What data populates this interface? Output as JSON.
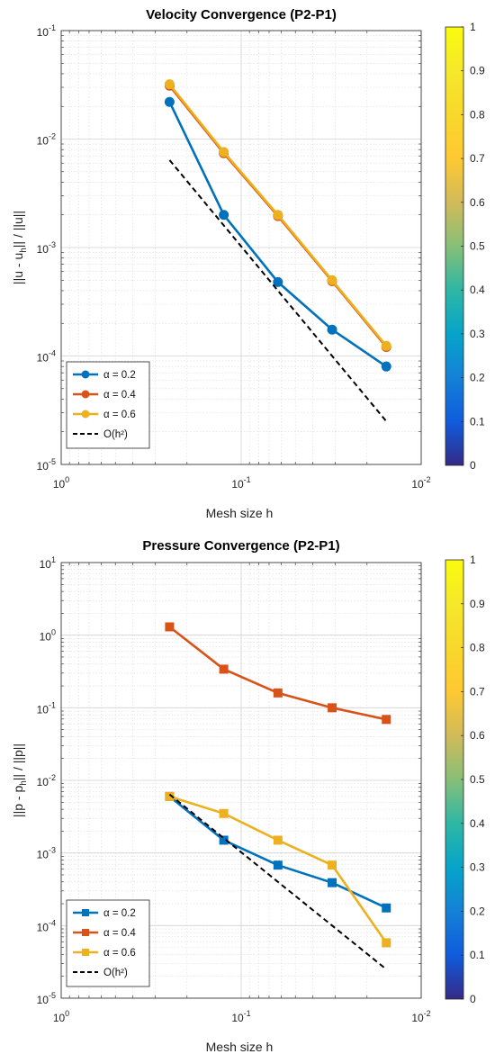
{
  "chart_data": [
    {
      "type": "line",
      "title": "Velocity Convergence (P2-P1)",
      "xlabel": "Mesh size h",
      "ylabel": "||u - u_h|| / ||u||",
      "xscale": "log",
      "yscale": "log",
      "xreverse": true,
      "xlim": [
        0.01,
        1
      ],
      "ylim": [
        1e-05,
        0.1
      ],
      "x_ticks": [
        {
          "v": 1,
          "base": "10",
          "exp": "0"
        },
        {
          "v": 0.1,
          "base": "10",
          "exp": "-1"
        },
        {
          "v": 0.01,
          "base": "10",
          "exp": "-2"
        }
      ],
      "y_ticks": [
        {
          "v": 1e-05,
          "base": "10",
          "exp": "-5"
        },
        {
          "v": 0.0001,
          "base": "10",
          "exp": "-4"
        },
        {
          "v": 0.001,
          "base": "10",
          "exp": "-3"
        },
        {
          "v": 0.01,
          "base": "10",
          "exp": "-2"
        },
        {
          "v": 0.1,
          "base": "10",
          "exp": "-1"
        }
      ],
      "marker": "circle",
      "grid": true,
      "legend_position": "bottom-left",
      "x": [
        0.25,
        0.125,
        0.0625,
        0.03125,
        0.015625
      ],
      "series": [
        {
          "name": "α = 0.2",
          "color": "#0072BD",
          "values": [
            0.022,
            0.002,
            0.00048,
            0.000175,
            8e-05
          ]
        },
        {
          "name": "α = 0.4",
          "color": "#D95319",
          "values": [
            0.031,
            0.0074,
            0.00195,
            0.00049,
            0.000121
          ]
        },
        {
          "name": "α = 0.6",
          "color": "#EDB120",
          "values": [
            0.032,
            0.0076,
            0.002,
            0.0005,
            0.000124
          ]
        },
        {
          "name": "O(h²)",
          "color": "#000000",
          "dashed": true,
          "values": [
            0.0064,
            0.0016,
            0.0004,
            0.0001,
            2.5e-05
          ]
        }
      ],
      "colorbar": {
        "min": 0,
        "max": 1,
        "ticks": [
          "0",
          "0.1",
          "0.2",
          "0.3",
          "0.4",
          "0.5",
          "0.6",
          "0.7",
          "0.8",
          "0.9",
          "1"
        ]
      }
    },
    {
      "type": "line",
      "title": "Pressure Convergence (P2-P1)",
      "xlabel": "Mesh size h",
      "ylabel": "||p - p_h|| / ||p||",
      "xscale": "log",
      "yscale": "log",
      "xreverse": true,
      "xlim": [
        0.01,
        1
      ],
      "ylim": [
        1e-05,
        10
      ],
      "x_ticks": [
        {
          "v": 1,
          "base": "10",
          "exp": "0"
        },
        {
          "v": 0.1,
          "base": "10",
          "exp": "-1"
        },
        {
          "v": 0.01,
          "base": "10",
          "exp": "-2"
        }
      ],
      "y_ticks": [
        {
          "v": 1e-05,
          "base": "10",
          "exp": "-5"
        },
        {
          "v": 0.0001,
          "base": "10",
          "exp": "-4"
        },
        {
          "v": 0.001,
          "base": "10",
          "exp": "-3"
        },
        {
          "v": 0.01,
          "base": "10",
          "exp": "-2"
        },
        {
          "v": 0.1,
          "base": "10",
          "exp": "-1"
        },
        {
          "v": 1,
          "base": "10",
          "exp": "0"
        },
        {
          "v": 10,
          "base": "10",
          "exp": "1"
        }
      ],
      "marker": "square",
      "grid": true,
      "legend_position": "bottom-left",
      "x": [
        0.25,
        0.125,
        0.0625,
        0.03125,
        0.015625
      ],
      "series": [
        {
          "name": "α = 0.2",
          "color": "#0072BD",
          "values": [
            0.006,
            0.0015,
            0.00068,
            0.00039,
            0.000175
          ]
        },
        {
          "name": "α = 0.4",
          "color": "#D95319",
          "values": [
            1.3,
            0.34,
            0.16,
            0.1,
            0.069
          ]
        },
        {
          "name": "α = 0.6",
          "color": "#EDB120",
          "values": [
            0.006,
            0.0035,
            0.0015,
            0.00068,
            5.8e-05
          ]
        },
        {
          "name": "O(h²)",
          "color": "#000000",
          "dashed": true,
          "values": [
            0.0064,
            0.0016,
            0.0004,
            0.0001,
            2.5e-05
          ]
        }
      ],
      "colorbar": {
        "min": 0,
        "max": 1,
        "ticks": [
          "0",
          "0.1",
          "0.2",
          "0.3",
          "0.4",
          "0.5",
          "0.6",
          "0.7",
          "0.8",
          "0.9",
          "1"
        ]
      }
    }
  ]
}
